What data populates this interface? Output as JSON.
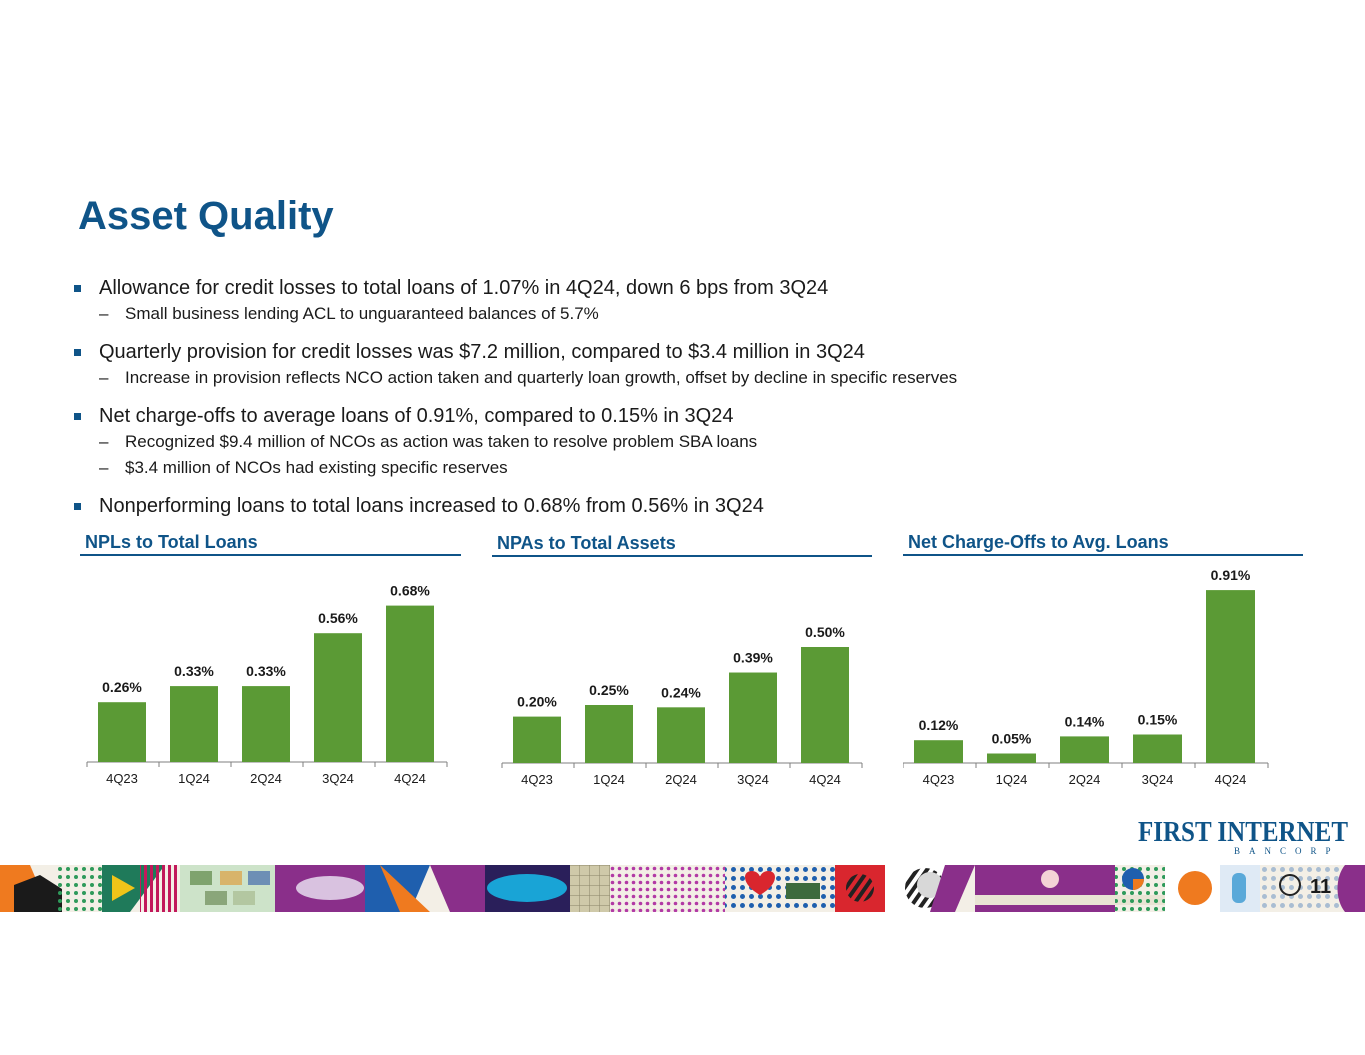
{
  "title": "Asset Quality",
  "bullets": [
    {
      "text": "Allowance for credit losses to total loans of 1.07% in 4Q24, down 6 bps from 3Q24",
      "subs": [
        "Small business lending ACL to unguaranteed balances of 5.7%"
      ]
    },
    {
      "text": "Quarterly provision for credit losses was $7.2 million, compared to $3.4 million in 3Q24",
      "subs": [
        "Increase in provision reflects NCO action taken and quarterly loan growth, offset by decline in specific reserves"
      ]
    },
    {
      "text": "Net charge-offs to average loans of 0.91%, compared to 0.15% in 3Q24",
      "subs": [
        "Recognized $9.4 million of NCOs as action was taken to resolve problem SBA loans",
        "$3.4 million of NCOs had existing specific reserves"
      ]
    },
    {
      "text": "Nonperforming loans to total loans increased to 0.68% from 0.56% in 3Q24",
      "subs": []
    }
  ],
  "sub_dash": "–",
  "logo": {
    "text": "FIRST INTERNET",
    "sub": "BANCORP"
  },
  "page_number": "11",
  "colors": {
    "accent": "#0f5488",
    "bar": "#5b9a35"
  },
  "chart_data": [
    {
      "type": "bar",
      "title": "NPLs to Total Loans",
      "categories": [
        "4Q23",
        "1Q24",
        "2Q24",
        "3Q24",
        "4Q24"
      ],
      "values": [
        0.26,
        0.33,
        0.33,
        0.56,
        0.68
      ],
      "labels": [
        "0.26%",
        "0.33%",
        "0.33%",
        "0.56%",
        "0.68%"
      ]
    },
    {
      "type": "bar",
      "title": "NPAs to Total Assets",
      "categories": [
        "4Q23",
        "1Q24",
        "2Q24",
        "3Q24",
        "4Q24"
      ],
      "values": [
        0.2,
        0.25,
        0.24,
        0.39,
        0.5
      ],
      "labels": [
        "0.20%",
        "0.25%",
        "0.24%",
        "0.39%",
        "0.50%"
      ]
    },
    {
      "type": "bar",
      "title": "Net Charge-Offs to Avg. Loans",
      "categories": [
        "4Q23",
        "1Q24",
        "2Q24",
        "3Q24",
        "4Q24"
      ],
      "values": [
        0.12,
        0.05,
        0.14,
        0.15,
        0.91
      ],
      "labels": [
        "0.12%",
        "0.05%",
        "0.14%",
        "0.15%",
        "0.91%"
      ]
    }
  ]
}
